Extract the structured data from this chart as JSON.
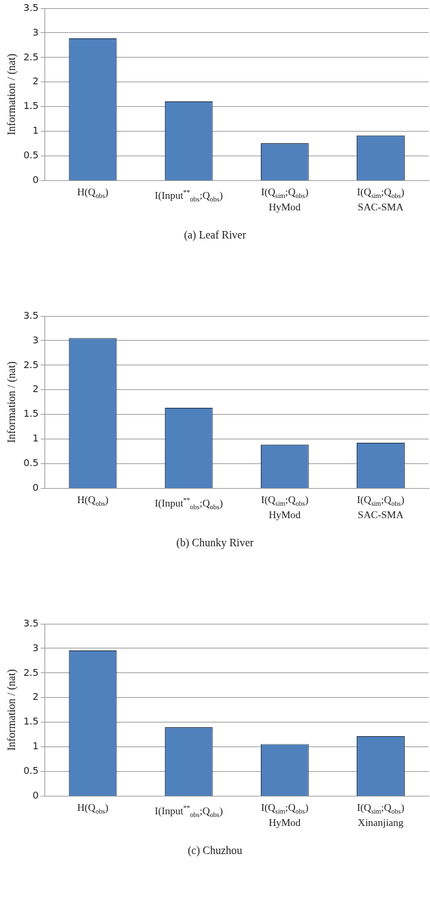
{
  "chart_data": [
    {
      "type": "bar",
      "title": "(a)  Leaf River",
      "ylabel": "Information / (nat)",
      "categories": [
        "H(Q$_{obs}$)",
        "I(Input$^{**}$$_{obs}$;Q$_{obs}$)",
        "I(Q$_{sim}$;Q$_{obs}$)\nHyMod",
        "I(Q$_{sim}$;Q$_{obs}$)\nSAC-SMA"
      ],
      "values": [
        2.89,
        1.61,
        0.76,
        0.92
      ],
      "color": "#4f81bd",
      "ylim": [
        0,
        3.5
      ],
      "yticks": [
        0,
        0.5,
        1,
        1.5,
        2,
        2.5,
        3,
        3.5
      ],
      "grid": "y",
      "legend": false
    },
    {
      "type": "bar",
      "title": "(b)  Chunky River",
      "ylabel": "Information / (nat)",
      "categories": [
        "H(Q$_{obs}$)",
        "I(Input$^{**}$$_{obs}$;Q$_{obs}$)",
        "I(Q$_{sim}$;Q$_{obs}$)\nHyMod",
        "I(Q$_{sim}$;Q$_{obs}$)\nSAC-SMA"
      ],
      "values": [
        3.05,
        1.64,
        0.89,
        0.93
      ],
      "color": "#4f81bd",
      "ylim": [
        0,
        3.5
      ],
      "yticks": [
        0,
        0.5,
        1,
        1.5,
        2,
        2.5,
        3,
        3.5
      ],
      "grid": "y",
      "legend": false
    },
    {
      "type": "bar",
      "title": "(c)  Chuzhou",
      "ylabel": "Information / (nat)",
      "categories": [
        "H(Q$_{obs}$)",
        "I(Input$^{**}$$_{obs}$;Q$_{obs}$)",
        "I(Q$_{sim}$;Q$_{obs}$)\nHyMod",
        "I(Q$_{sim}$;Q$_{obs}$)\nXinanjiang"
      ],
      "values": [
        2.96,
        1.4,
        1.06,
        1.22
      ],
      "color": "#4f81bd",
      "ylim": [
        0,
        3.5
      ],
      "yticks": [
        0,
        0.5,
        1,
        1.5,
        2,
        2.5,
        3,
        3.5
      ],
      "grid": "y",
      "legend": false
    }
  ]
}
